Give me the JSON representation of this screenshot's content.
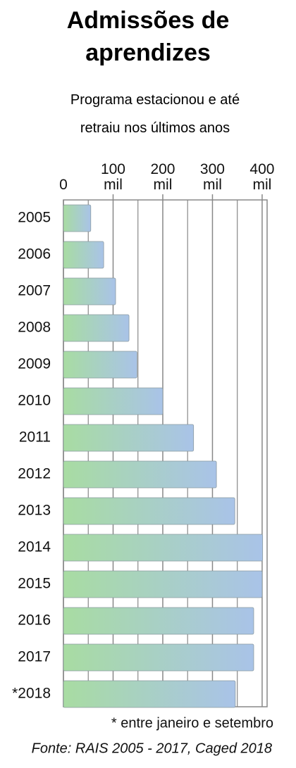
{
  "chart_data": {
    "type": "hbar",
    "title": "Admissões de aprendizes",
    "subtitle": "Programa estacionou e até retraiu nos últimos anos",
    "categories": [
      "2005",
      "2006",
      "2007",
      "2008",
      "2009",
      "2010",
      "2011",
      "2012",
      "2013",
      "2014",
      "2015",
      "2016",
      "2017",
      "*2018"
    ],
    "values": [
      55,
      81,
      105,
      132,
      148,
      200,
      262,
      308,
      345,
      401,
      400,
      383,
      383,
      346
    ],
    "color_start": "#a8dca2",
    "color_end": "#a9c3e8",
    "xlim": [
      0,
      410
    ],
    "xticks": [
      0,
      {
        "value": 100,
        "label": "100 mil"
      },
      {
        "value": 200,
        "label": "200 mil"
      },
      {
        "value": 300,
        "label": "300 mil"
      },
      {
        "value": 400,
        "label": "400 mil"
      }
    ],
    "minor_grid": [
      50,
      150,
      250,
      350
    ],
    "grid": true,
    "footnote": "* entre janeiro e setembro",
    "source": "Fonte: RAIS 2005 - 2017, Caged 2018"
  }
}
